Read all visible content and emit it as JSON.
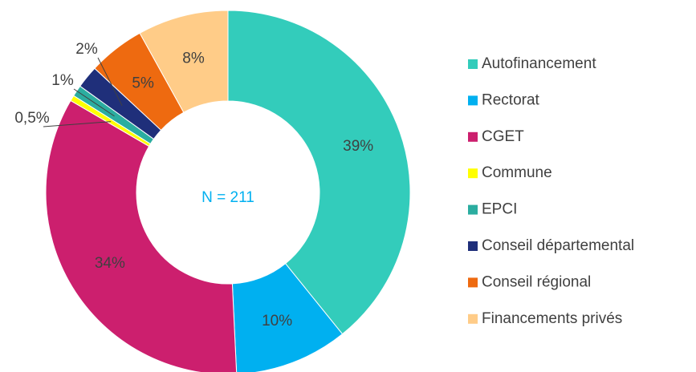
{
  "chart_data": {
    "type": "donut",
    "center_label": "N = 211",
    "categories": [
      "Autofinancement",
      "Rectorat",
      "CGET",
      "Commune",
      "EPCI",
      "Conseil départemental",
      "Conseil régional",
      "Financements privés"
    ],
    "values": [
      39,
      10,
      34,
      0.5,
      1,
      2,
      5,
      8
    ],
    "value_labels": [
      "39%",
      "10%",
      "34%",
      "0,5%",
      "1%",
      "2%",
      "5%",
      "8%"
    ],
    "colors": [
      "#33CCBB",
      "#00B0F0",
      "#CC1F6E",
      "#FFFF00",
      "#2BADA0",
      "#1F2F7A",
      "#EE6A10",
      "#FFCC88"
    ],
    "legend": "right"
  }
}
